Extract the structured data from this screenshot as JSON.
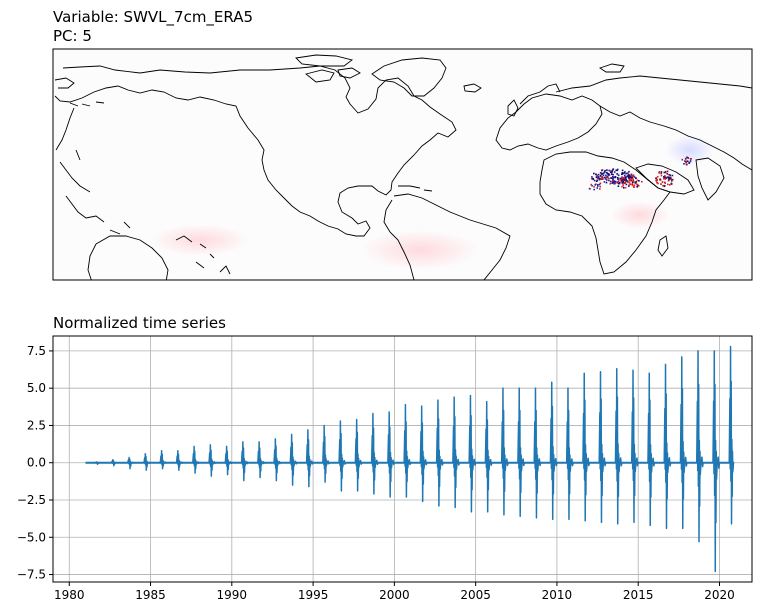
{
  "map_panel": {
    "title_line1": "Variable: SWVL_7cm_ERA5",
    "title_line2": "PC: 5"
  },
  "chart_data": {
    "type": "line",
    "title": "Normalized time series",
    "xlabel": "",
    "ylabel": "",
    "xlim": [
      1979.0,
      2022.0
    ],
    "ylim": [
      -8.0,
      8.5
    ],
    "xticks": [
      1980,
      1985,
      1990,
      1995,
      2000,
      2005,
      2010,
      2015,
      2020
    ],
    "xtick_labels": [
      "1980",
      "1985",
      "1990",
      "1995",
      "2000",
      "2005",
      "2010",
      "2015",
      "2020"
    ],
    "yticks": [
      -7.5,
      -5.0,
      -2.5,
      0.0,
      2.5,
      5.0,
      7.5
    ],
    "ytick_labels": [
      "−7.5",
      "−5.0",
      "−2.5",
      "0.0",
      "2.5",
      "5.0",
      "7.5"
    ],
    "grid": true,
    "color": "#1f77b4",
    "series": [
      {
        "x_start": 1981.0,
        "x_end": 2020.9,
        "baseline": 0.0,
        "annual_spikes": [
          {
            "year": 1981,
            "max": 0.05,
            "min": -0.1
          },
          {
            "year": 1982,
            "max": 0.2,
            "min": -0.2
          },
          {
            "year": 1983,
            "max": 0.35,
            "min": -0.4
          },
          {
            "year": 1984,
            "max": 0.6,
            "min": -0.5
          },
          {
            "year": 1985,
            "max": 0.8,
            "min": -0.4
          },
          {
            "year": 1986,
            "max": 0.8,
            "min": -0.5
          },
          {
            "year": 1987,
            "max": 1.1,
            "min": -0.7
          },
          {
            "year": 1988,
            "max": 1.2,
            "min": -0.9
          },
          {
            "year": 1989,
            "max": 1.1,
            "min": -0.8
          },
          {
            "year": 1990,
            "max": 1.4,
            "min": -1.2
          },
          {
            "year": 1991,
            "max": 1.4,
            "min": -1.0
          },
          {
            "year": 1992,
            "max": 1.6,
            "min": -1.2
          },
          {
            "year": 1993,
            "max": 1.9,
            "min": -1.5
          },
          {
            "year": 1994,
            "max": 2.2,
            "min": -1.6
          },
          {
            "year": 1995,
            "max": 2.5,
            "min": -1.3
          },
          {
            "year": 1996,
            "max": 2.8,
            "min": -1.9
          },
          {
            "year": 1997,
            "max": 2.9,
            "min": -1.9
          },
          {
            "year": 1998,
            "max": 3.3,
            "min": -2.1
          },
          {
            "year": 1999,
            "max": 3.4,
            "min": -2.3
          },
          {
            "year": 2000,
            "max": 3.9,
            "min": -2.3
          },
          {
            "year": 2001,
            "max": 3.8,
            "min": -2.6
          },
          {
            "year": 2002,
            "max": 4.2,
            "min": -2.9
          },
          {
            "year": 2003,
            "max": 4.4,
            "min": -3.0
          },
          {
            "year": 2004,
            "max": 4.5,
            "min": -3.3
          },
          {
            "year": 2005,
            "max": 4.1,
            "min": -3.3
          },
          {
            "year": 2006,
            "max": 5.0,
            "min": -3.5
          },
          {
            "year": 2007,
            "max": 5.0,
            "min": -3.6
          },
          {
            "year": 2008,
            "max": 5.0,
            "min": -3.7
          },
          {
            "year": 2009,
            "max": 5.4,
            "min": -3.8
          },
          {
            "year": 2010,
            "max": 5.0,
            "min": -3.8
          },
          {
            "year": 2011,
            "max": 6.0,
            "min": -3.9
          },
          {
            "year": 2012,
            "max": 6.1,
            "min": -4.0
          },
          {
            "year": 2013,
            "max": 6.3,
            "min": -4.1
          },
          {
            "year": 2014,
            "max": 6.2,
            "min": -4.0
          },
          {
            "year": 2015,
            "max": 6.0,
            "min": -4.2
          },
          {
            "year": 2016,
            "max": 6.6,
            "min": -4.4
          },
          {
            "year": 2017,
            "max": 7.1,
            "min": -4.4
          },
          {
            "year": 2018,
            "max": 7.5,
            "min": -5.3
          },
          {
            "year": 2019,
            "max": 7.5,
            "min": -7.3
          },
          {
            "year": 2020,
            "max": 7.8,
            "min": -4.1
          }
        ]
      }
    ]
  }
}
